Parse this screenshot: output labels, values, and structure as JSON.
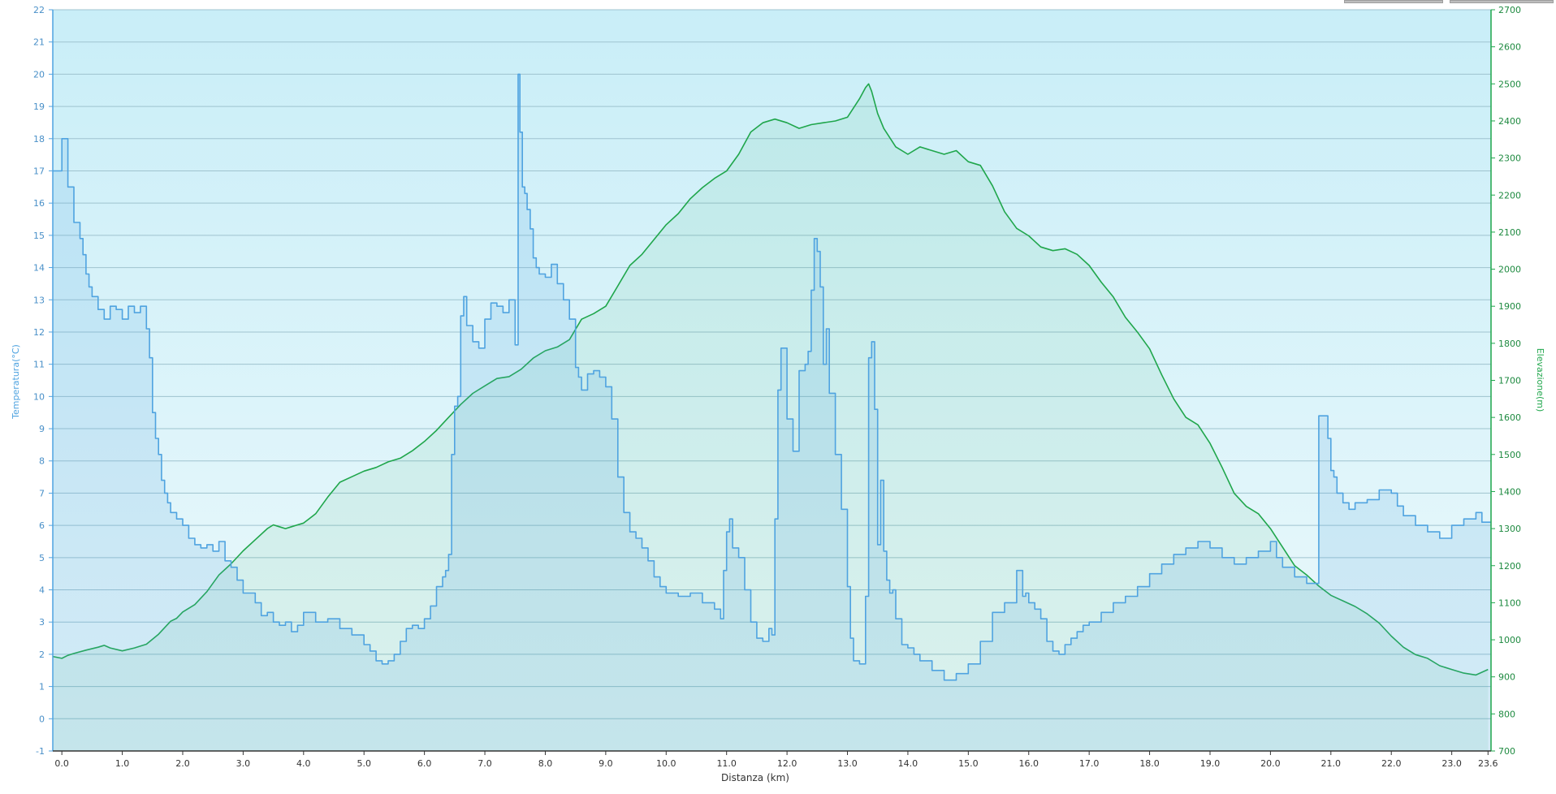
{
  "colors": {
    "temperature": "#4fa3e0",
    "elevation": "#1fa64b",
    "background_top": "#c8eef7",
    "background_bottom": "#eaf8fb",
    "grid": "#9fc3cf"
  },
  "chart_data": {
    "type": "line",
    "title": "",
    "xlabel": "Distanza  (km)",
    "ylabel_left": "Temperatura(°C)",
    "ylabel_right": "Elevazione(m)",
    "xlim": [
      -0.15,
      23.65
    ],
    "ylim_left": [
      -1,
      22
    ],
    "ylim_right": [
      700,
      2700
    ],
    "x_ticks": [
      "0.0",
      "1.0",
      "2.0",
      "3.0",
      "4.0",
      "5.0",
      "6.0",
      "7.0",
      "8.0",
      "9.0",
      "10.0",
      "11.0",
      "12.0",
      "13.0",
      "14.0",
      "15.0",
      "16.0",
      "17.0",
      "18.0",
      "19.0",
      "20.0",
      "21.0",
      "22.0",
      "23.0",
      "23.6"
    ],
    "y_left_ticks": [
      "22",
      "21",
      "20",
      "19",
      "18",
      "17",
      "16",
      "15",
      "14",
      "13",
      "12",
      "11",
      "10",
      "9",
      "8",
      "7",
      "6",
      "5",
      "4",
      "3",
      "2",
      "1",
      "0",
      "-1"
    ],
    "y_right_ticks": [
      "2700",
      "2600",
      "2500",
      "2400",
      "2300",
      "2200",
      "2100",
      "2000",
      "1900",
      "1800",
      "1700",
      "1600",
      "1500",
      "1400",
      "1300",
      "1200",
      "1100",
      "1000",
      "900",
      "800",
      "700"
    ],
    "grid": true,
    "series": [
      {
        "name": "Temperatura",
        "axis": "left",
        "step": true,
        "x": [
          -0.15,
          0.0,
          0.05,
          0.1,
          0.2,
          0.3,
          0.35,
          0.4,
          0.45,
          0.5,
          0.6,
          0.7,
          0.8,
          0.9,
          1.0,
          1.1,
          1.2,
          1.3,
          1.4,
          1.45,
          1.5,
          1.55,
          1.6,
          1.65,
          1.7,
          1.75,
          1.8,
          1.9,
          2.0,
          2.1,
          2.2,
          2.3,
          2.4,
          2.5,
          2.6,
          2.7,
          2.8,
          2.9,
          3.0,
          3.1,
          3.2,
          3.3,
          3.4,
          3.5,
          3.6,
          3.7,
          3.8,
          3.9,
          4.0,
          4.2,
          4.4,
          4.6,
          4.8,
          5.0,
          5.1,
          5.2,
          5.3,
          5.4,
          5.5,
          5.6,
          5.7,
          5.8,
          5.9,
          6.0,
          6.1,
          6.2,
          6.3,
          6.35,
          6.4,
          6.45,
          6.5,
          6.55,
          6.6,
          6.65,
          6.7,
          6.8,
          6.9,
          7.0,
          7.1,
          7.2,
          7.3,
          7.4,
          7.5,
          7.55,
          7.58,
          7.62,
          7.66,
          7.7,
          7.75,
          7.8,
          7.85,
          7.9,
          8.0,
          8.1,
          8.2,
          8.3,
          8.4,
          8.5,
          8.55,
          8.6,
          8.7,
          8.8,
          8.9,
          9.0,
          9.1,
          9.2,
          9.3,
          9.4,
          9.5,
          9.6,
          9.7,
          9.8,
          9.9,
          10.0,
          10.2,
          10.4,
          10.6,
          10.8,
          10.9,
          10.95,
          11.0,
          11.05,
          11.1,
          11.2,
          11.3,
          11.4,
          11.5,
          11.6,
          11.7,
          11.75,
          11.8,
          11.85,
          11.9,
          12.0,
          12.1,
          12.2,
          12.3,
          12.35,
          12.4,
          12.45,
          12.5,
          12.55,
          12.6,
          12.65,
          12.7,
          12.8,
          12.9,
          13.0,
          13.05,
          13.1,
          13.15,
          13.2,
          13.3,
          13.35,
          13.4,
          13.45,
          13.5,
          13.55,
          13.6,
          13.65,
          13.7,
          13.75,
          13.8,
          13.9,
          14.0,
          14.1,
          14.2,
          14.4,
          14.6,
          14.8,
          15.0,
          15.2,
          15.4,
          15.6,
          15.8,
          15.9,
          15.95,
          16.0,
          16.1,
          16.2,
          16.3,
          16.4,
          16.5,
          16.6,
          16.7,
          16.8,
          16.9,
          17.0,
          17.2,
          17.4,
          17.6,
          17.8,
          18.0,
          18.2,
          18.4,
          18.6,
          18.8,
          19.0,
          19.2,
          19.4,
          19.6,
          19.8,
          20.0,
          20.1,
          20.2,
          20.4,
          20.6,
          20.8,
          20.95,
          21.0,
          21.05,
          21.1,
          21.2,
          21.3,
          21.4,
          21.6,
          21.8,
          22.0,
          22.1,
          22.2,
          22.4,
          22.6,
          22.8,
          23.0,
          23.2,
          23.4,
          23.5,
          23.6
        ],
        "y": [
          17.0,
          18.0,
          18.0,
          16.5,
          15.4,
          14.9,
          14.4,
          13.8,
          13.4,
          13.1,
          12.7,
          12.4,
          12.8,
          12.7,
          12.4,
          12.8,
          12.6,
          12.8,
          12.1,
          11.2,
          9.5,
          8.7,
          8.2,
          7.4,
          7.0,
          6.7,
          6.4,
          6.2,
          6.0,
          5.6,
          5.4,
          5.3,
          5.4,
          5.2,
          5.5,
          4.9,
          4.7,
          4.3,
          3.9,
          3.9,
          3.6,
          3.2,
          3.3,
          3.0,
          2.9,
          3.0,
          2.7,
          2.9,
          3.3,
          3.0,
          3.1,
          2.8,
          2.6,
          2.3,
          2.1,
          1.8,
          1.7,
          1.8,
          2.0,
          2.4,
          2.8,
          2.9,
          2.8,
          3.1,
          3.5,
          4.1,
          4.4,
          4.6,
          5.1,
          8.2,
          9.7,
          10.0,
          12.5,
          13.1,
          12.2,
          11.7,
          11.5,
          12.4,
          12.9,
          12.8,
          12.6,
          13.0,
          11.6,
          20.0,
          18.2,
          16.5,
          16.3,
          15.8,
          15.2,
          14.3,
          14.0,
          13.8,
          13.7,
          14.1,
          13.5,
          13.0,
          12.4,
          10.9,
          10.6,
          10.2,
          10.7,
          10.8,
          10.6,
          10.3,
          9.3,
          7.5,
          6.4,
          5.8,
          5.6,
          5.3,
          4.9,
          4.4,
          4.1,
          3.9,
          3.8,
          3.9,
          3.6,
          3.4,
          3.1,
          4.6,
          5.8,
          6.2,
          5.3,
          5.0,
          4.0,
          3.0,
          2.5,
          2.4,
          2.8,
          2.6,
          6.2,
          10.2,
          11.5,
          9.3,
          8.3,
          10.8,
          11.0,
          11.4,
          13.3,
          14.9,
          14.5,
          13.4,
          11.0,
          12.1,
          10.1,
          8.2,
          6.5,
          4.1,
          2.5,
          1.8,
          1.8,
          1.7,
          3.8,
          11.2,
          11.7,
          9.6,
          5.4,
          7.4,
          5.2,
          4.3,
          3.9,
          4.0,
          3.1,
          2.3,
          2.2,
          2.0,
          1.8,
          1.5,
          1.2,
          1.4,
          1.7,
          2.4,
          3.3,
          3.6,
          4.6,
          3.8,
          3.9,
          3.6,
          3.4,
          3.1,
          2.4,
          2.1,
          2.0,
          2.3,
          2.5,
          2.7,
          2.9,
          3.0,
          3.3,
          3.6,
          3.8,
          4.1,
          4.5,
          4.8,
          5.1,
          5.3,
          5.5,
          5.3,
          5.0,
          4.8,
          5.0,
          5.2,
          5.5,
          5.0,
          4.7,
          4.4,
          4.2,
          9.4,
          8.7,
          7.7,
          7.5,
          7.0,
          6.7,
          6.5,
          6.7,
          6.8,
          7.1,
          7.0,
          6.6,
          6.3,
          6.0,
          5.8,
          5.6,
          6.0,
          6.2,
          6.4,
          6.1,
          6.1
        ]
      },
      {
        "name": "Elevazione",
        "axis": "right",
        "step": false,
        "x": [
          -0.15,
          0.0,
          0.1,
          0.2,
          0.4,
          0.6,
          0.7,
          0.8,
          1.0,
          1.2,
          1.4,
          1.6,
          1.8,
          1.9,
          2.0,
          2.2,
          2.4,
          2.6,
          2.8,
          3.0,
          3.2,
          3.4,
          3.5,
          3.6,
          3.7,
          3.8,
          3.9,
          4.0,
          4.2,
          4.4,
          4.6,
          4.8,
          5.0,
          5.2,
          5.4,
          5.6,
          5.8,
          6.0,
          6.2,
          6.4,
          6.6,
          6.8,
          7.0,
          7.2,
          7.4,
          7.6,
          7.8,
          8.0,
          8.2,
          8.4,
          8.6,
          8.8,
          9.0,
          9.2,
          9.4,
          9.6,
          9.8,
          10.0,
          10.2,
          10.4,
          10.6,
          10.8,
          11.0,
          11.2,
          11.4,
          11.6,
          11.8,
          12.0,
          12.2,
          12.4,
          12.6,
          12.8,
          13.0,
          13.2,
          13.3,
          13.35,
          13.4,
          13.5,
          13.6,
          13.8,
          14.0,
          14.2,
          14.4,
          14.6,
          14.8,
          15.0,
          15.2,
          15.4,
          15.6,
          15.8,
          16.0,
          16.2,
          16.4,
          16.6,
          16.8,
          17.0,
          17.2,
          17.4,
          17.6,
          17.8,
          18.0,
          18.2,
          18.4,
          18.6,
          18.8,
          19.0,
          19.2,
          19.4,
          19.6,
          19.8,
          20.0,
          20.2,
          20.4,
          20.6,
          20.8,
          21.0,
          21.2,
          21.4,
          21.6,
          21.8,
          22.0,
          22.2,
          22.4,
          22.6,
          22.8,
          23.0,
          23.2,
          23.4,
          23.6
        ],
        "y": [
          955,
          950,
          958,
          963,
          972,
          980,
          985,
          978,
          970,
          978,
          988,
          1015,
          1050,
          1058,
          1075,
          1095,
          1130,
          1175,
          1205,
          1240,
          1270,
          1300,
          1310,
          1305,
          1300,
          1305,
          1310,
          1315,
          1340,
          1385,
          1425,
          1440,
          1455,
          1465,
          1480,
          1490,
          1510,
          1535,
          1565,
          1600,
          1635,
          1665,
          1685,
          1705,
          1710,
          1730,
          1760,
          1780,
          1790,
          1810,
          1865,
          1880,
          1900,
          1955,
          2010,
          2040,
          2080,
          2120,
          2150,
          2190,
          2220,
          2245,
          2265,
          2310,
          2370,
          2395,
          2405,
          2395,
          2380,
          2390,
          2395,
          2400,
          2410,
          2460,
          2490,
          2500,
          2480,
          2420,
          2380,
          2330,
          2310,
          2330,
          2320,
          2310,
          2320,
          2290,
          2280,
          2225,
          2155,
          2110,
          2090,
          2060,
          2050,
          2055,
          2040,
          2010,
          1965,
          1925,
          1870,
          1830,
          1785,
          1715,
          1650,
          1600,
          1580,
          1530,
          1465,
          1395,
          1360,
          1340,
          1300,
          1250,
          1200,
          1175,
          1145,
          1120,
          1105,
          1090,
          1070,
          1045,
          1010,
          980,
          960,
          950,
          930,
          920,
          910,
          905,
          920
        ]
      }
    ]
  }
}
